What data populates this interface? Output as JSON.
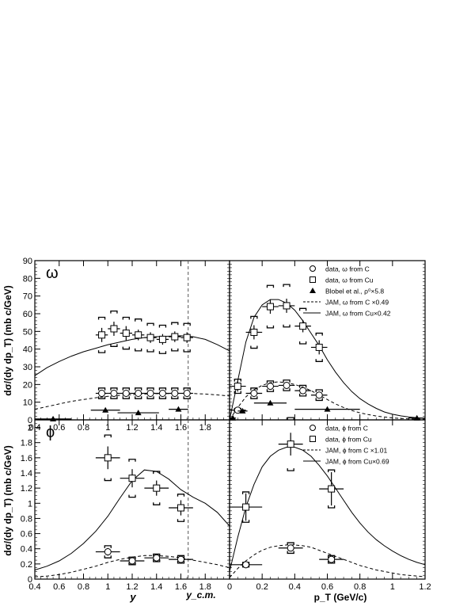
{
  "figure": {
    "y_axis_label_top": "dσ/(dy dp_T) (mb c/GeV)",
    "y_axis_label_bottom": "dσ/(dy dp_T) (mb c/GeV)",
    "x_axis_label_left": "y",
    "x_axis_label_right": "p_T (GeV/c)",
    "ycm_label": "y_c.m."
  },
  "chart_data": [
    {
      "id": "omega-vs-y",
      "type": "scatter",
      "panel_label": "ω",
      "xlim": [
        0.4,
        2.0
      ],
      "ylim": [
        0,
        90
      ],
      "xticks": [
        "0.4",
        "0.6",
        "0.8",
        "1",
        "1.2",
        "1.4",
        "1.6",
        "1.8"
      ],
      "yticks": [
        "0",
        "10",
        "20",
        "30",
        "40",
        "50",
        "60",
        "70",
        "80",
        "90"
      ],
      "ycm": 1.66,
      "series": [
        {
          "marker": "square",
          "points": [
            {
              "x": 0.95,
              "y": 48,
              "xerr": 0.05,
              "yerr": 4,
              "syst": 10
            },
            {
              "x": 1.05,
              "y": 51.5,
              "xerr": 0.05,
              "yerr": 4,
              "syst": 10
            },
            {
              "x": 1.15,
              "y": 49,
              "xerr": 0.05,
              "yerr": 4,
              "syst": 9
            },
            {
              "x": 1.25,
              "y": 48,
              "xerr": 0.05,
              "yerr": 3,
              "syst": 9
            },
            {
              "x": 1.35,
              "y": 46.5,
              "xerr": 0.05,
              "yerr": 3,
              "syst": 8
            },
            {
              "x": 1.45,
              "y": 45.5,
              "xerr": 0.05,
              "yerr": 3,
              "syst": 8
            },
            {
              "x": 1.55,
              "y": 47,
              "xerr": 0.05,
              "yerr": 3,
              "syst": 8
            },
            {
              "x": 1.65,
              "y": 46.5,
              "xerr": 0.05,
              "yerr": 3,
              "syst": 8
            }
          ]
        },
        {
          "marker": "circle",
          "points": [
            {
              "x": 0.95,
              "y": 15,
              "xerr": 0.05,
              "yerr": 1.5,
              "syst": 3
            },
            {
              "x": 1.05,
              "y": 15,
              "xerr": 0.05,
              "yerr": 1.5,
              "syst": 3
            },
            {
              "x": 1.15,
              "y": 15,
              "xerr": 0.05,
              "yerr": 1.5,
              "syst": 3
            },
            {
              "x": 1.25,
              "y": 15,
              "xerr": 0.05,
              "yerr": 1.5,
              "syst": 3
            },
            {
              "x": 1.35,
              "y": 15,
              "xerr": 0.05,
              "yerr": 1.5,
              "syst": 3
            },
            {
              "x": 1.45,
              "y": 15,
              "xerr": 0.05,
              "yerr": 1.5,
              "syst": 3
            },
            {
              "x": 1.55,
              "y": 15,
              "xerr": 0.05,
              "yerr": 1.5,
              "syst": 3
            },
            {
              "x": 1.65,
              "y": 15,
              "xerr": 0.05,
              "yerr": 1.5,
              "syst": 3
            }
          ]
        },
        {
          "marker": "triangle",
          "points": [
            {
              "x": 0.55,
              "y": 0.5,
              "xerr": 0.15,
              "yerr": 0
            },
            {
              "x": 0.98,
              "y": 5.5,
              "xerr": 0.12,
              "yerr": 0
            },
            {
              "x": 1.25,
              "y": 4,
              "xerr": 0.17,
              "yerr": 0
            },
            {
              "x": 1.58,
              "y": 6,
              "xerr": 0.08,
              "yerr": 0
            }
          ]
        }
      ],
      "curves": [
        {
          "style": "solid",
          "x": [
            0.4,
            0.5,
            0.6,
            0.7,
            0.8,
            0.9,
            1.0,
            1.1,
            1.2,
            1.3,
            1.4,
            1.5,
            1.6,
            1.7,
            1.8,
            1.9,
            2.0
          ],
          "y": [
            25,
            29.5,
            33,
            36,
            38.5,
            40.5,
            42.5,
            44,
            45.5,
            46.5,
            47,
            47.3,
            47.5,
            47,
            45.5,
            42.5,
            39
          ]
        },
        {
          "style": "dashed",
          "x": [
            0.4,
            0.5,
            0.6,
            0.7,
            0.8,
            0.9,
            1.0,
            1.1,
            1.2,
            1.3,
            1.4,
            1.5,
            1.6,
            1.7,
            1.8,
            1.9,
            2.0
          ],
          "y": [
            6,
            7.5,
            9,
            10.5,
            11.5,
            12.5,
            13.3,
            13.9,
            14.3,
            14.6,
            14.8,
            14.9,
            15,
            14.9,
            14.6,
            14.1,
            13.5
          ]
        }
      ]
    },
    {
      "id": "omega-vs-pt",
      "type": "scatter",
      "xlim": [
        0,
        1.2
      ],
      "ylim": [
        0,
        90
      ],
      "legend": [
        {
          "marker": "circle",
          "label": "data, ω from C"
        },
        {
          "marker": "square",
          "label": "data, ω from Cu"
        },
        {
          "marker": "triangle",
          "label": "Blobel et al., ρ⁰×5.8"
        },
        {
          "marker": "dashed",
          "label": "JAM, ω from C ×0.49"
        },
        {
          "marker": "solid",
          "label": "JAM, ω from Cu×0.42"
        }
      ],
      "series": [
        {
          "marker": "square",
          "points": [
            {
              "x": 0.05,
              "y": 19,
              "xerr": 0.05,
              "yerr": 3,
              "syst": 4
            },
            {
              "x": 0.15,
              "y": 49.5,
              "xerr": 0.05,
              "yerr": 4,
              "syst": 9
            },
            {
              "x": 0.25,
              "y": 64,
              "xerr": 0.05,
              "yerr": 4,
              "syst": 12
            },
            {
              "x": 0.35,
              "y": 64.5,
              "xerr": 0.05,
              "yerr": 4,
              "syst": 12
            },
            {
              "x": 0.45,
              "y": 53,
              "xerr": 0.05,
              "yerr": 3.5,
              "syst": 10
            },
            {
              "x": 0.55,
              "y": 41,
              "xerr": 0.05,
              "yerr": 4,
              "syst": 8
            }
          ]
        },
        {
          "marker": "circle",
          "points": [
            {
              "x": 0.05,
              "y": 5.5,
              "xerr": 0.05,
              "yerr": 1,
              "syst": 1
            },
            {
              "x": 0.15,
              "y": 15,
              "xerr": 0.05,
              "yerr": 1.5,
              "syst": 3
            },
            {
              "x": 0.25,
              "y": 19,
              "xerr": 0.05,
              "yerr": 1.5,
              "syst": 3
            },
            {
              "x": 0.35,
              "y": 19.5,
              "xerr": 0.05,
              "yerr": 1.5,
              "syst": 3
            },
            {
              "x": 0.45,
              "y": 16.5,
              "xerr": 0.05,
              "yerr": 1.5,
              "syst": 3
            },
            {
              "x": 0.55,
              "y": 14,
              "xerr": 0.05,
              "yerr": 1.5,
              "syst": 3
            }
          ]
        },
        {
          "marker": "triangle",
          "points": [
            {
              "x": 0.02,
              "y": 1,
              "xerr": 0.02,
              "yerr": 0
            },
            {
              "x": 0.08,
              "y": 5,
              "xerr": 0.03,
              "yerr": 0
            },
            {
              "x": 0.25,
              "y": 9.5,
              "xerr": 0.1,
              "yerr": 0
            },
            {
              "x": 0.6,
              "y": 6,
              "xerr": 0.2,
              "yerr": 0
            },
            {
              "x": 1.15,
              "y": 1,
              "xerr": 0.05,
              "yerr": 0
            }
          ]
        }
      ],
      "curves": [
        {
          "style": "solid",
          "x": [
            0,
            0.05,
            0.1,
            0.15,
            0.2,
            0.25,
            0.3,
            0.35,
            0.4,
            0.45,
            0.5,
            0.55,
            0.6,
            0.65,
            0.7,
            0.75,
            0.8,
            0.85,
            0.9,
            0.95,
            1.0,
            1.05,
            1.1,
            1.15,
            1.2
          ],
          "y": [
            0,
            22,
            44,
            58,
            65,
            68,
            68,
            66,
            62,
            56,
            49,
            42,
            34,
            27,
            21,
            16,
            12,
            9,
            6.5,
            4.5,
            3.2,
            2.3,
            1.6,
            1.2,
            0.8
          ]
        },
        {
          "style": "dashed",
          "x": [
            0,
            0.05,
            0.1,
            0.15,
            0.2,
            0.25,
            0.3,
            0.35,
            0.4,
            0.45,
            0.5,
            0.55,
            0.6,
            0.65,
            0.7,
            0.75,
            0.8,
            0.85,
            0.9,
            0.95,
            1.0,
            1.05,
            1.1,
            1.15,
            1.2
          ],
          "y": [
            0,
            7,
            13,
            17,
            19.5,
            21,
            21.5,
            21,
            20,
            18.5,
            16.5,
            14,
            11.5,
            9,
            7,
            5.3,
            4,
            3,
            2.2,
            1.6,
            1.1,
            0.8,
            0.6,
            0.4,
            0.3
          ]
        }
      ]
    },
    {
      "id": "phi-vs-y",
      "type": "scatter",
      "panel_label": "ϕ",
      "xlim": [
        0.4,
        2.0
      ],
      "ylim": [
        0,
        2.1
      ],
      "xticks": [
        "0.4",
        "0.6",
        "0.8",
        "1",
        "1.2",
        "1.4",
        "1.6",
        "1.8"
      ],
      "yticks": [
        "0",
        "0.2",
        "0.4",
        "0.6",
        "0.8",
        "1",
        "1.2",
        "1.4",
        "1.6",
        "1.8",
        "2"
      ],
      "ycm": 1.66,
      "series": [
        {
          "marker": "square",
          "points": [
            {
              "x": 1.0,
              "y": 1.6,
              "xerr": 0.1,
              "yerr": 0.15,
              "syst": 0.3
            },
            {
              "x": 1.2,
              "y": 1.33,
              "xerr": 0.1,
              "yerr": 0.12,
              "syst": 0.25
            },
            {
              "x": 1.4,
              "y": 1.2,
              "xerr": 0.1,
              "yerr": 0.1,
              "syst": 0.22
            },
            {
              "x": 1.6,
              "y": 0.94,
              "xerr": 0.1,
              "yerr": 0.1,
              "syst": 0.18
            }
          ]
        },
        {
          "marker": "circle",
          "points": [
            {
              "x": 1.0,
              "y": 0.36,
              "xerr": 0.1,
              "yerr": 0.05,
              "syst": 0.08
            },
            {
              "x": 1.2,
              "y": 0.24,
              "xerr": 0.1,
              "yerr": 0.03,
              "syst": 0.05
            },
            {
              "x": 1.4,
              "y": 0.28,
              "xerr": 0.1,
              "yerr": 0.03,
              "syst": 0.05
            },
            {
              "x": 1.6,
              "y": 0.26,
              "xerr": 0.1,
              "yerr": 0.03,
              "syst": 0.05
            }
          ]
        }
      ],
      "curves": [
        {
          "style": "solid",
          "x": [
            0.4,
            0.5,
            0.6,
            0.7,
            0.8,
            0.9,
            1.0,
            1.1,
            1.2,
            1.3,
            1.4,
            1.5,
            1.6,
            1.7,
            1.8,
            1.9,
            2.0
          ],
          "y": [
            0.12,
            0.17,
            0.24,
            0.34,
            0.47,
            0.63,
            0.83,
            1.07,
            1.3,
            1.44,
            1.42,
            1.32,
            1.18,
            1.08,
            1.0,
            0.88,
            0.7
          ]
        },
        {
          "style": "dashed",
          "x": [
            0.4,
            0.5,
            0.6,
            0.7,
            0.8,
            0.9,
            1.0,
            1.1,
            1.2,
            1.3,
            1.4,
            1.5,
            1.6,
            1.7,
            1.8,
            1.9,
            2.0
          ],
          "y": [
            0.03,
            0.04,
            0.06,
            0.09,
            0.13,
            0.17,
            0.22,
            0.26,
            0.29,
            0.31,
            0.31,
            0.3,
            0.28,
            0.25,
            0.22,
            0.19,
            0.15
          ]
        }
      ]
    },
    {
      "id": "phi-vs-pt",
      "type": "scatter",
      "xlim": [
        0,
        1.2
      ],
      "ylim": [
        0,
        2.1
      ],
      "xticks": [
        "0",
        "0.2",
        "0.4",
        "0.6",
        "0.8",
        "1",
        "1.2"
      ],
      "legend": [
        {
          "marker": "circle",
          "label": "data, ϕ from C"
        },
        {
          "marker": "square",
          "label": "data, ϕ from Cu"
        },
        {
          "marker": "dashed",
          "label": "JAM, ϕ from C ×1.01"
        },
        {
          "marker": "solid",
          "label": "JAM, ϕ from Cu×0.69"
        }
      ],
      "series": [
        {
          "marker": "square",
          "points": [
            {
              "x": 0.1,
              "y": 0.95,
              "xerr": 0.1,
              "yerr": 0.18,
              "syst": 0.2
            },
            {
              "x": 0.375,
              "y": 1.78,
              "xerr": 0.075,
              "yerr": 0.15,
              "syst": 0.35
            },
            {
              "x": 0.625,
              "y": 1.19,
              "xerr": 0.075,
              "yerr": 0.22,
              "syst": 0.25
            }
          ]
        },
        {
          "marker": "circle",
          "points": [
            {
              "x": 0.1,
              "y": 0.19,
              "xerr": 0.1,
              "yerr": 0.02,
              "syst": 0.03
            },
            {
              "x": 0.375,
              "y": 0.41,
              "xerr": 0.075,
              "yerr": 0.04,
              "syst": 0.07
            },
            {
              "x": 0.625,
              "y": 0.26,
              "xerr": 0.075,
              "yerr": 0.04,
              "syst": 0.05
            }
          ]
        }
      ],
      "curves": [
        {
          "style": "solid",
          "x": [
            0,
            0.05,
            0.1,
            0.15,
            0.2,
            0.25,
            0.3,
            0.35,
            0.4,
            0.45,
            0.5,
            0.55,
            0.6,
            0.65,
            0.7,
            0.75,
            0.8,
            0.85,
            0.9,
            0.95,
            1.0,
            1.05,
            1.1,
            1.15,
            1.2
          ],
          "y": [
            0.1,
            0.55,
            0.95,
            1.25,
            1.48,
            1.62,
            1.7,
            1.74,
            1.74,
            1.7,
            1.62,
            1.5,
            1.36,
            1.2,
            1.04,
            0.88,
            0.74,
            0.62,
            0.52,
            0.44,
            0.37,
            0.31,
            0.26,
            0.22,
            0.19
          ]
        },
        {
          "style": "dashed",
          "x": [
            0,
            0.05,
            0.1,
            0.15,
            0.2,
            0.25,
            0.3,
            0.35,
            0.4,
            0.45,
            0.5,
            0.55,
            0.6,
            0.65,
            0.7,
            0.75,
            0.8,
            0.85,
            0.9,
            0.95,
            1.0,
            1.05,
            1.1,
            1.15,
            1.2
          ],
          "y": [
            0.02,
            0.14,
            0.24,
            0.32,
            0.38,
            0.42,
            0.44,
            0.45,
            0.45,
            0.44,
            0.42,
            0.38,
            0.34,
            0.3,
            0.26,
            0.22,
            0.18,
            0.15,
            0.12,
            0.1,
            0.08,
            0.06,
            0.05,
            0.04,
            0.03
          ]
        }
      ]
    }
  ]
}
